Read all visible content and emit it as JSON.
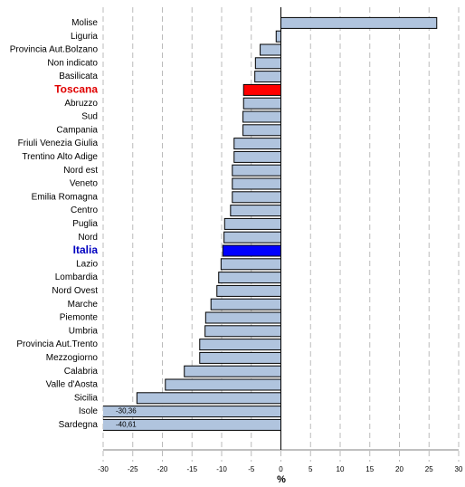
{
  "chart_data": {
    "type": "barh",
    "categories": [
      "Molise",
      "Liguria",
      "Provincia Aut.Bolzano",
      "Non indicato",
      "Basilicata",
      "Toscana",
      "Abruzzo",
      "Sud",
      "Campania",
      "Friuli Venezia Giulia",
      "Trentino Alto Adige",
      "Nord est",
      "Veneto",
      "Emilia Romagna",
      "Centro",
      "Puglia",
      "Nord",
      "Italia",
      "Lazio",
      "Lombardia",
      "Nord Ovest",
      "Marche",
      "Piemonte",
      "Umbria",
      "Provincia Aut.Trento",
      "Mezzogiorno",
      "Calabria",
      "Valle d'Aosta",
      "Sicilia",
      "Isole",
      "Sardegna"
    ],
    "values": [
      26.3,
      -0.8,
      -3.5,
      -4.3,
      -4.4,
      -6.3,
      -6.3,
      -6.4,
      -6.4,
      -7.9,
      -7.9,
      -8.2,
      -8.2,
      -8.2,
      -8.5,
      -9.5,
      -9.6,
      -9.8,
      -10.1,
      -10.5,
      -10.8,
      -11.8,
      -12.7,
      -12.8,
      -13.7,
      -13.7,
      -16.3,
      -19.5,
      -24.3,
      -30.36,
      -40.61
    ],
    "value_labels": [
      null,
      null,
      null,
      null,
      null,
      null,
      null,
      null,
      null,
      null,
      null,
      null,
      null,
      null,
      null,
      null,
      null,
      null,
      null,
      null,
      null,
      null,
      null,
      null,
      null,
      null,
      null,
      null,
      null,
      "-30,36",
      "-40,61"
    ],
    "color": "#b0c4de",
    "colors": [
      "#b0c4de",
      "#b0c4de",
      "#b0c4de",
      "#b0c4de",
      "#b0c4de",
      "#ff0000",
      "#b0c4de",
      "#b0c4de",
      "#b0c4de",
      "#b0c4de",
      "#b0c4de",
      "#b0c4de",
      "#b0c4de",
      "#b0c4de",
      "#b0c4de",
      "#b0c4de",
      "#b0c4de",
      "#0000ff",
      "#b0c4de",
      "#b0c4de",
      "#b0c4de",
      "#b0c4de",
      "#b0c4de",
      "#b0c4de",
      "#b0c4de",
      "#b0c4de",
      "#b0c4de",
      "#b0c4de",
      "#b0c4de",
      "#b0c4de",
      "#b0c4de"
    ],
    "highlight_label_colors": {
      "Toscana": "#e00000",
      "Italia": "#0000c0"
    },
    "xlabel": "%",
    "xlim": [
      -30,
      30
    ],
    "xticks": [
      -30,
      -25,
      -20,
      -15,
      -10,
      -5,
      0,
      5,
      10,
      15,
      20,
      25,
      30
    ],
    "grid": true
  }
}
